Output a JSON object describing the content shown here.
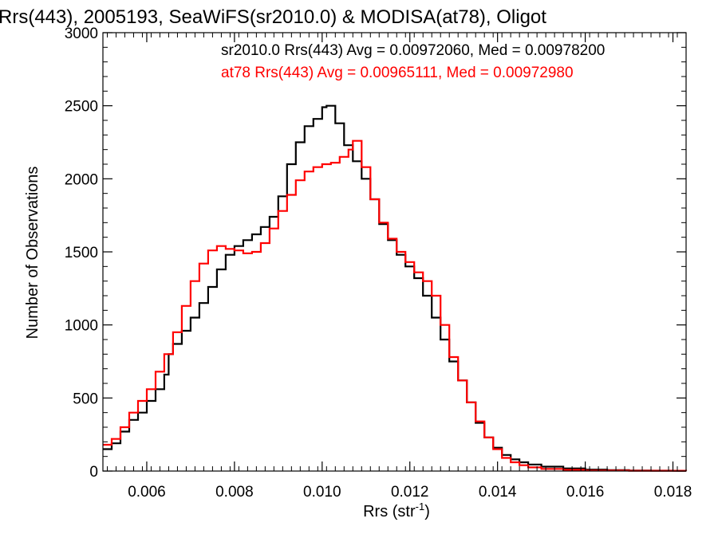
{
  "chart_data": {
    "type": "line",
    "title": "Rrs(443), 2005193, SeaWiFS(sr2010.0) & MODISA(at78), Oligot",
    "xlabel": "Rrs (str",
    "xlabel_sup": "-1",
    "xlabel_close": ")",
    "ylabel": "Number of Observations",
    "xlim": [
      0.005,
      0.0183
    ],
    "ylim": [
      0,
      3000
    ],
    "xticks": [
      0.006,
      0.008,
      0.01,
      0.012,
      0.014,
      0.016,
      0.018
    ],
    "xtick_labels": [
      "0.006",
      "0.008",
      "0.010",
      "0.012",
      "0.014",
      "0.016",
      "0.018"
    ],
    "yticks": [
      0,
      500,
      1000,
      1500,
      2000,
      2500,
      3000
    ],
    "ytick_labels": [
      "0",
      "500",
      "1000",
      "1500",
      "2000",
      "2500",
      "3000"
    ],
    "grid": false,
    "step": true,
    "colors": {
      "sr2010": "#000000",
      "at78": "#ff0000"
    },
    "annotations": [
      {
        "text": "sr2010.0 Rrs(443) Avg = 0.00972060, Med = 0.00978200",
        "color": "#000000"
      },
      {
        "text": "at78 Rrs(443) Avg = 0.00965111, Med = 0.00972980",
        "color": "#ff0000"
      }
    ],
    "series": [
      {
        "name": "sr2010.0",
        "color": "#000000",
        "points": [
          [
            0.005,
            150
          ],
          [
            0.0052,
            190
          ],
          [
            0.0054,
            270
          ],
          [
            0.0056,
            350
          ],
          [
            0.0058,
            400
          ],
          [
            0.006,
            480
          ],
          [
            0.0062,
            560
          ],
          [
            0.0064,
            660
          ],
          [
            0.0065,
            800
          ],
          [
            0.0066,
            870
          ],
          [
            0.0068,
            960
          ],
          [
            0.007,
            1050
          ],
          [
            0.0072,
            1150
          ],
          [
            0.0074,
            1260
          ],
          [
            0.0076,
            1380
          ],
          [
            0.0078,
            1480
          ],
          [
            0.008,
            1540
          ],
          [
            0.0082,
            1580
          ],
          [
            0.0084,
            1620
          ],
          [
            0.0086,
            1670
          ],
          [
            0.0088,
            1740
          ],
          [
            0.009,
            1880
          ],
          [
            0.0092,
            2100
          ],
          [
            0.0094,
            2250
          ],
          [
            0.0096,
            2360
          ],
          [
            0.0098,
            2410
          ],
          [
            0.01,
            2490
          ],
          [
            0.0101,
            2500
          ],
          [
            0.0103,
            2380
          ],
          [
            0.0105,
            2230
          ],
          [
            0.0107,
            2120
          ],
          [
            0.0109,
            2000
          ],
          [
            0.0111,
            1860
          ],
          [
            0.0113,
            1690
          ],
          [
            0.0115,
            1580
          ],
          [
            0.0117,
            1480
          ],
          [
            0.0119,
            1400
          ],
          [
            0.0121,
            1320
          ],
          [
            0.0123,
            1200
          ],
          [
            0.0125,
            1050
          ],
          [
            0.0127,
            900
          ],
          [
            0.0129,
            750
          ],
          [
            0.0131,
            620
          ],
          [
            0.0133,
            470
          ],
          [
            0.0135,
            330
          ],
          [
            0.0137,
            230
          ],
          [
            0.0139,
            160
          ],
          [
            0.0141,
            110
          ],
          [
            0.0143,
            80
          ],
          [
            0.0145,
            60
          ],
          [
            0.0147,
            45
          ],
          [
            0.015,
            30
          ],
          [
            0.0155,
            18
          ],
          [
            0.016,
            10
          ],
          [
            0.0165,
            6
          ],
          [
            0.017,
            4
          ],
          [
            0.0175,
            3
          ],
          [
            0.018,
            2
          ],
          [
            0.0183,
            2
          ]
        ]
      },
      {
        "name": "at78",
        "color": "#ff0000",
        "points": [
          [
            0.005,
            180
          ],
          [
            0.0052,
            220
          ],
          [
            0.0054,
            300
          ],
          [
            0.0056,
            400
          ],
          [
            0.0058,
            480
          ],
          [
            0.006,
            560
          ],
          [
            0.0062,
            680
          ],
          [
            0.0064,
            800
          ],
          [
            0.0066,
            950
          ],
          [
            0.0068,
            1130
          ],
          [
            0.007,
            1300
          ],
          [
            0.0072,
            1420
          ],
          [
            0.0074,
            1510
          ],
          [
            0.0076,
            1540
          ],
          [
            0.0078,
            1520
          ],
          [
            0.008,
            1510
          ],
          [
            0.0082,
            1490
          ],
          [
            0.0084,
            1500
          ],
          [
            0.0086,
            1560
          ],
          [
            0.0088,
            1660
          ],
          [
            0.009,
            1780
          ],
          [
            0.0092,
            1890
          ],
          [
            0.0094,
            1990
          ],
          [
            0.0096,
            2050
          ],
          [
            0.0098,
            2080
          ],
          [
            0.01,
            2100
          ],
          [
            0.0102,
            2110
          ],
          [
            0.0104,
            2150
          ],
          [
            0.0106,
            2200
          ],
          [
            0.0107,
            2260
          ],
          [
            0.0109,
            2080
          ],
          [
            0.0111,
            1860
          ],
          [
            0.0113,
            1700
          ],
          [
            0.0115,
            1590
          ],
          [
            0.0117,
            1500
          ],
          [
            0.0119,
            1430
          ],
          [
            0.0121,
            1360
          ],
          [
            0.0123,
            1300
          ],
          [
            0.0125,
            1200
          ],
          [
            0.0127,
            1000
          ],
          [
            0.0129,
            780
          ],
          [
            0.0131,
            620
          ],
          [
            0.0133,
            470
          ],
          [
            0.0135,
            340
          ],
          [
            0.0137,
            230
          ],
          [
            0.0139,
            150
          ],
          [
            0.0141,
            90
          ],
          [
            0.0143,
            60
          ],
          [
            0.0145,
            40
          ],
          [
            0.0147,
            25
          ],
          [
            0.015,
            15
          ],
          [
            0.0155,
            8
          ],
          [
            0.016,
            4
          ],
          [
            0.017,
            2
          ],
          [
            0.0183,
            1
          ]
        ]
      }
    ]
  }
}
